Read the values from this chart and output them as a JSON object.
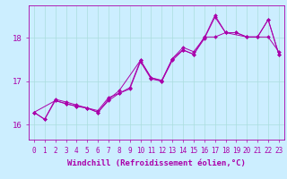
{
  "xlabel": "Windchill (Refroidissement éolien,°C)",
  "bg_color": "#cceeff",
  "grid_color": "#aadddd",
  "line_color": "#aa00aa",
  "x_ticks": [
    0,
    1,
    2,
    3,
    4,
    5,
    6,
    7,
    8,
    9,
    10,
    11,
    12,
    13,
    14,
    15,
    16,
    17,
    18,
    19,
    20,
    21,
    22,
    23
  ],
  "y_ticks": [
    16,
    17,
    18
  ],
  "ylim": [
    15.65,
    18.75
  ],
  "xlim": [
    -0.5,
    23.5
  ],
  "series1_x": [
    0,
    1,
    2,
    3,
    4,
    5,
    6,
    7,
    8,
    9,
    10,
    11,
    12,
    13,
    14,
    15,
    16,
    17,
    18,
    19,
    20,
    21,
    22,
    23
  ],
  "series1_y": [
    16.28,
    16.12,
    16.58,
    16.52,
    16.45,
    16.38,
    16.32,
    16.62,
    16.72,
    16.85,
    17.48,
    17.08,
    17.02,
    17.52,
    17.72,
    17.62,
    18.02,
    18.02,
    18.12,
    18.12,
    18.02,
    18.02,
    18.02,
    17.68
  ],
  "series2_x": [
    0,
    1,
    2,
    3,
    4,
    5,
    6,
    7,
    8,
    9,
    10,
    11,
    12,
    13,
    14,
    15,
    16,
    17,
    18,
    19,
    20,
    21,
    22,
    23
  ],
  "series2_y": [
    16.28,
    16.12,
    16.55,
    16.48,
    16.42,
    16.38,
    16.28,
    16.55,
    16.72,
    16.82,
    17.45,
    17.05,
    17.0,
    17.48,
    17.72,
    17.62,
    17.98,
    18.48,
    18.12,
    18.12,
    18.02,
    18.02,
    18.42,
    17.62
  ],
  "series3_x": [
    0,
    2,
    3,
    4,
    5,
    6,
    7,
    8,
    10,
    11,
    12,
    13,
    14,
    15,
    16,
    17,
    18,
    20,
    21,
    22,
    23
  ],
  "series3_y": [
    16.28,
    16.55,
    16.48,
    16.42,
    16.38,
    16.28,
    16.58,
    16.78,
    17.48,
    17.08,
    17.0,
    17.52,
    17.78,
    17.68,
    18.0,
    18.52,
    18.12,
    18.02,
    18.02,
    18.42,
    17.62
  ],
  "tick_fontsize": 5.5,
  "label_fontsize": 6.5
}
